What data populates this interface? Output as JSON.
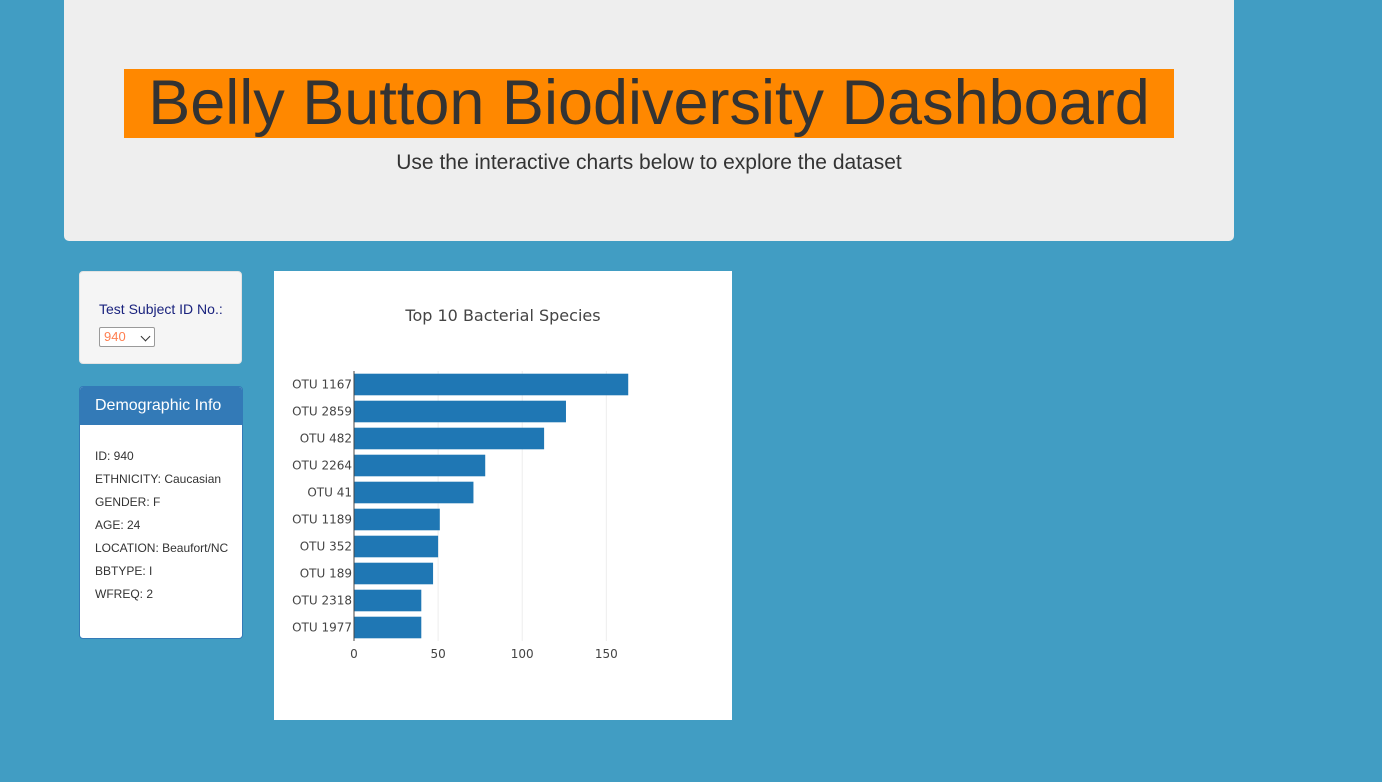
{
  "header": {
    "title": "Belly Button Biodiversity Dashboard",
    "subtitle": "Use the interactive charts below to explore the dataset"
  },
  "selector": {
    "label": "Test Subject ID No.:",
    "selected_value": "940"
  },
  "demographics": {
    "heading": "Demographic Info",
    "rows": [
      "ID: 940",
      "ETHNICITY: Caucasian",
      "GENDER: F",
      "AGE: 24",
      "LOCATION: Beaufort/NC",
      "BBTYPE: I",
      "WFREQ: 2"
    ]
  },
  "colors": {
    "page_background": "#419dc3",
    "title_highlight": "#ff8800",
    "panel_primary": "#337ab7",
    "bar_fill": "#1f77b4",
    "select_text": "#ff7f50"
  },
  "chart_data": {
    "type": "bar",
    "orientation": "horizontal",
    "title": "Top 10 Bacterial Species",
    "categories": [
      "OTU 1167",
      "OTU 2859",
      "OTU 482",
      "OTU 2264",
      "OTU 41",
      "OTU 1189",
      "OTU 352",
      "OTU 189",
      "OTU 2318",
      "OTU 1977"
    ],
    "values": [
      163,
      126,
      113,
      78,
      71,
      51,
      50,
      47,
      40,
      40
    ],
    "xlim": [
      0,
      170
    ],
    "xticks": [
      0,
      50,
      100,
      150
    ],
    "xlabel": "",
    "ylabel": "",
    "grid": true,
    "legend": "none"
  }
}
